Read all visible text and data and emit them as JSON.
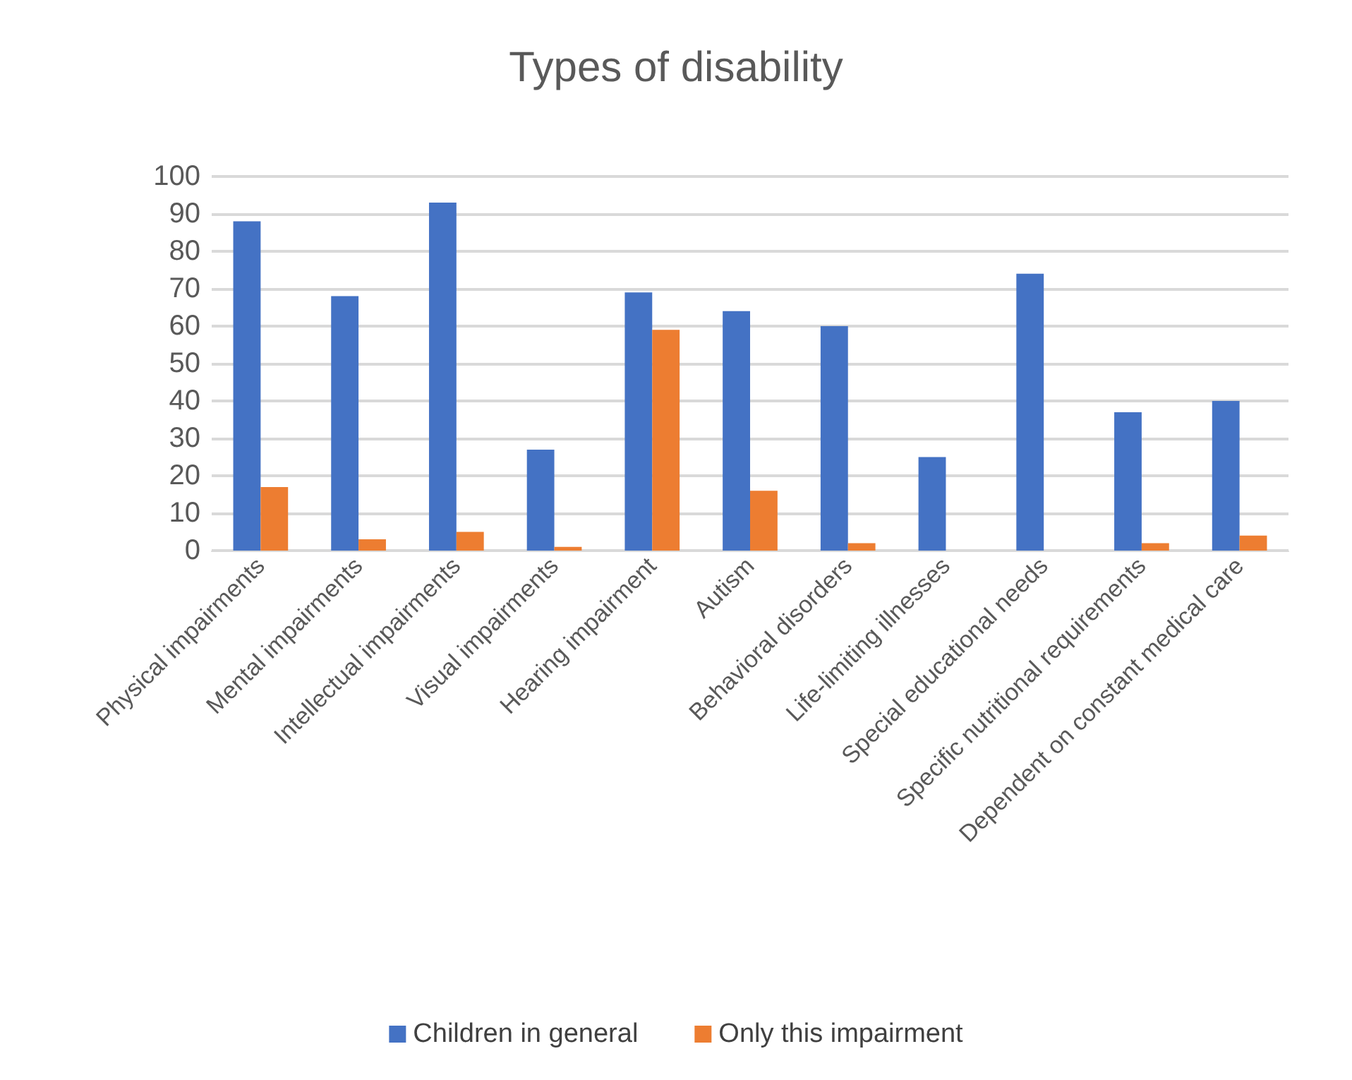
{
  "chart_data": {
    "type": "bar",
    "title": "Types of disability",
    "categories": [
      "Physical impairments",
      "Mental impairments",
      "Intellectual impairments",
      "Visual impairments",
      "Hearing impairment",
      "Autism",
      "Behavioral disorders",
      "Life-limiting illnesses",
      "Special educational needs",
      "Specific nutritional requirements",
      "Dependent on constant medical care"
    ],
    "series": [
      {
        "name": "Children in general",
        "color": "#4472c4",
        "values": [
          88,
          68,
          93,
          27,
          69,
          64,
          60,
          25,
          74,
          37,
          40
        ]
      },
      {
        "name": "Only this impairment",
        "color": "#ed7d31",
        "values": [
          17,
          3,
          5,
          1,
          59,
          16,
          2,
          0,
          0,
          2,
          4
        ]
      }
    ],
    "ylim": [
      0,
      100
    ],
    "yticks": [
      0,
      10,
      20,
      30,
      40,
      50,
      60,
      70,
      80,
      90,
      100
    ],
    "grid": "y",
    "legend": "bottom"
  }
}
